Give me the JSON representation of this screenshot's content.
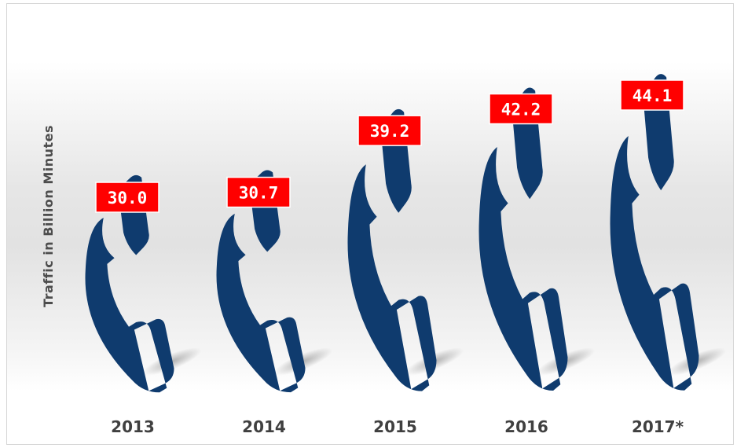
{
  "chart_data": {
    "type": "bar",
    "title": "",
    "xlabel": "",
    "ylabel": "Traffic in Billion Minutes",
    "categories": [
      "2013",
      "2014",
      "2015",
      "2016",
      "2017*"
    ],
    "values": [
      30.0,
      30.7,
      39.2,
      42.2,
      44.1
    ],
    "value_labels": [
      "30.0",
      "30.7",
      "39.2",
      "42.2",
      "44.1"
    ],
    "marker": "phone-handset-icon",
    "colors": {
      "handset": "#0f3b6e",
      "label_box": "#ff0000",
      "label_text": "#ffffff"
    },
    "grid": false,
    "legend": "none"
  }
}
